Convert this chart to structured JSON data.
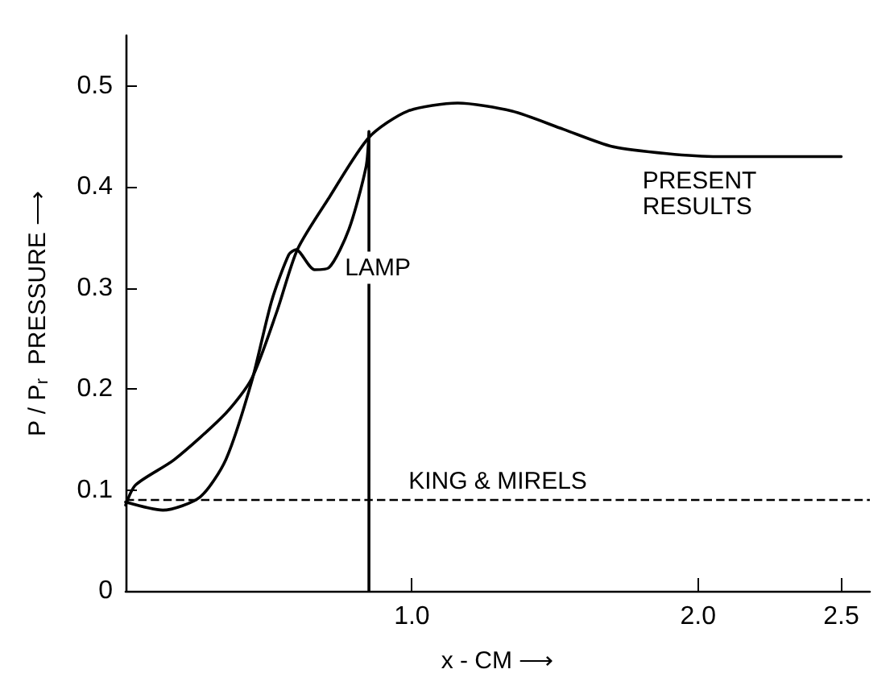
{
  "chart_data": {
    "type": "line",
    "xlabel": "x - CM ⟶",
    "ylabel": "P / P$_{r}$  PRESSURE ⟶",
    "xlim": [
      0,
      2.6
    ],
    "ylim": [
      0,
      0.55
    ],
    "xticks": [
      {
        "value": 1,
        "label": "1.0"
      },
      {
        "value": 2,
        "label": "2.0"
      },
      {
        "value": 2.5,
        "label": "2.5"
      }
    ],
    "yticks": [
      0,
      0.1,
      0.2,
      0.3,
      0.4,
      0.5
    ],
    "series": [
      {
        "name": "PRESENT RESULTS",
        "color": "#000000",
        "x": [
          0,
          0.035,
          0.17,
          0.35,
          0.44,
          0.53,
          0.6,
          0.71,
          0.85,
          0.985,
          1.16,
          1.35,
          1.53,
          1.7,
          1.89,
          2.07,
          2.25,
          2.5
        ],
        "values": [
          0.085,
          0.105,
          0.13,
          0.176,
          0.21,
          0.278,
          0.338,
          0.389,
          0.449,
          0.475,
          0.483,
          0.475,
          0.457,
          0.44,
          0.433,
          0.43,
          0.43,
          0.43
        ]
      },
      {
        "name": "LAMP",
        "color": "#000000",
        "x": [
          0,
          0.13,
          0.26,
          0.35,
          0.44,
          0.51,
          0.57,
          0.595,
          0.66,
          0.71,
          0.78,
          0.84,
          0.85,
          0.85
        ],
        "values": [
          0.088,
          0.08,
          0.093,
          0.13,
          0.207,
          0.287,
          0.333,
          0.338,
          0.318,
          0.32,
          0.358,
          0.42,
          0.455,
          0
        ]
      }
    ],
    "ref_lines": [
      {
        "axis": "y",
        "value": 0.09,
        "label": "KING & MIRELS",
        "color": "#000000",
        "line_style": "dashed"
      }
    ],
    "grid": false,
    "legend": false,
    "marker": "none",
    "line_style": "solid"
  }
}
